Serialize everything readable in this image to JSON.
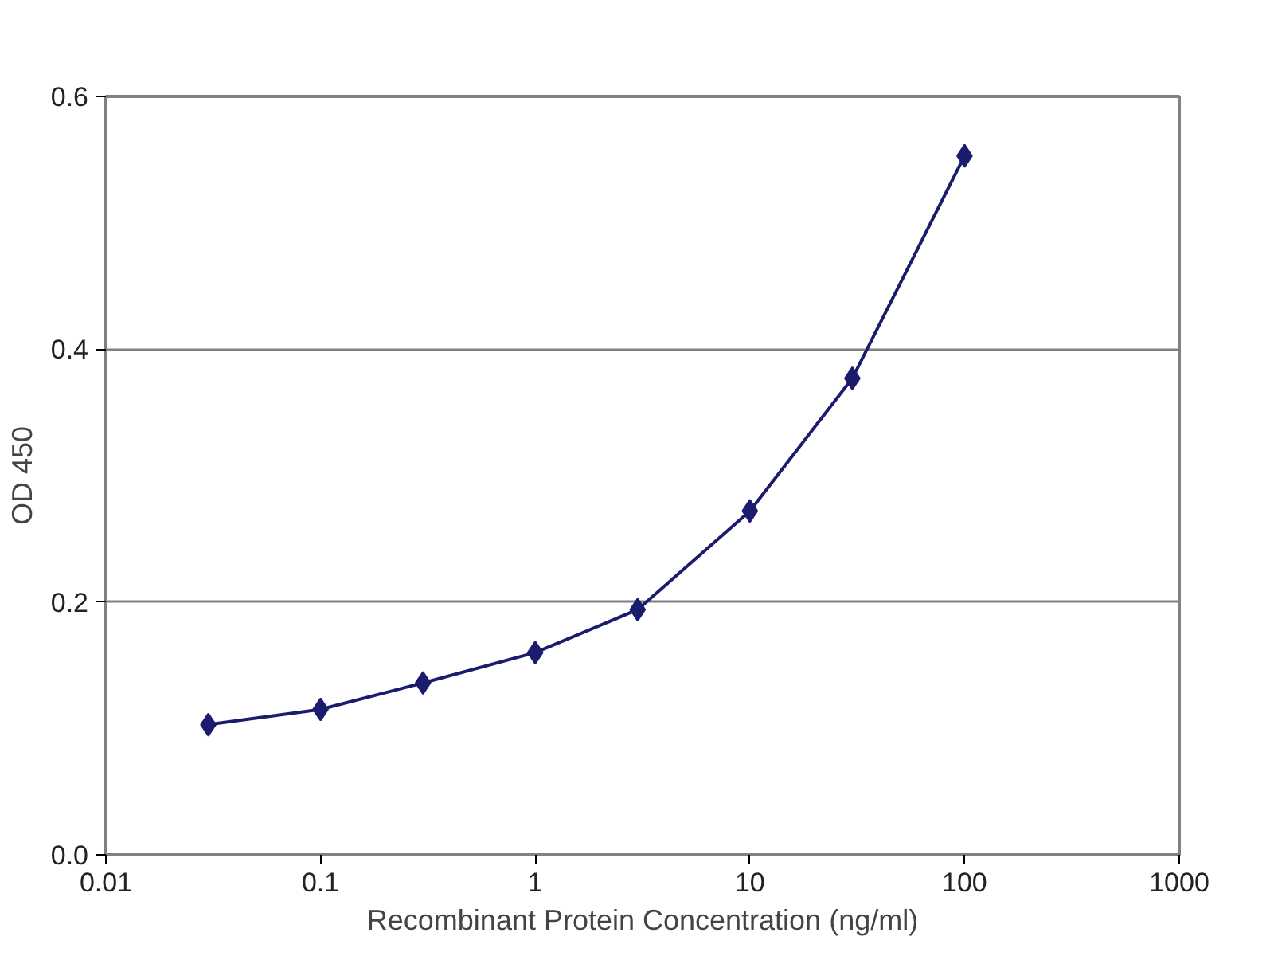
{
  "chart_data": {
    "type": "line",
    "xlabel": "Recombinant Protein Concentration (ng/ml)",
    "ylabel": "OD 450",
    "x": [
      0.03,
      0.1,
      0.3,
      1,
      3,
      10,
      30,
      100
    ],
    "series": [
      {
        "color": "#1c1c6e",
        "values": [
          0.103,
          0.115,
          0.136,
          0.16,
          0.194,
          0.272,
          0.377,
          0.553
        ]
      }
    ],
    "log": "x",
    "xlim": [
      0.01,
      1000
    ],
    "xticks": [
      0.01,
      0.1,
      1,
      10,
      100,
      1000
    ],
    "ylim": [
      0,
      0.6
    ],
    "yticks": [
      {
        "value": 0,
        "label": "0.0"
      },
      0.2,
      0.4,
      0.6
    ],
    "grid": "y",
    "marker": "diamond",
    "line_style": "solid"
  }
}
